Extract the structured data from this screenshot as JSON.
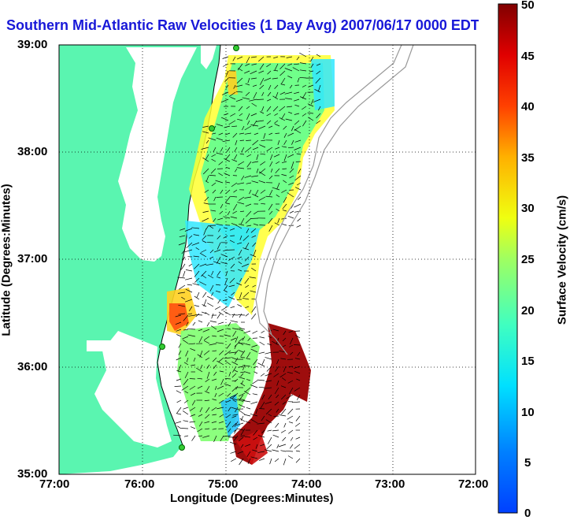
{
  "title": "Southern Mid-Atlantic Raw Velocities (1 Day Avg) 2007/06/17 0000 EDT",
  "x_axis": {
    "label": "Longitude (Degrees:Minutes)",
    "ticks": [
      "77:00",
      "76:00",
      "75:00",
      "74:00",
      "73:00",
      "72:00"
    ]
  },
  "y_axis": {
    "label": "Latitude (Degrees:Minutes)",
    "ticks": [
      "39:00",
      "38:00",
      "37:00",
      "36:00",
      "35:00"
    ]
  },
  "colorbar": {
    "label": "Surface Velocity (cm/s)",
    "ticks": [
      "50",
      "45",
      "40",
      "35",
      "30",
      "25",
      "20",
      "15",
      "10",
      "5",
      "0"
    ],
    "min": 0,
    "max": 50,
    "colormap": "jet"
  },
  "colors": {
    "land": "#5af5b0",
    "title": "#1818d8",
    "station": "#33cc33",
    "bathymetry": "#999999"
  },
  "map": {
    "lon_range": [
      "77:00 W",
      "72:00 W"
    ],
    "lat_range": [
      "35:00 N",
      "39:00 N"
    ],
    "grid": true
  }
}
